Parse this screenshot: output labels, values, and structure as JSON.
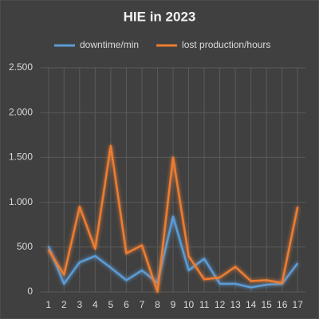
{
  "chart_data": {
    "type": "line",
    "title": "HIE in 2023",
    "categories": [
      "1",
      "2",
      "3",
      "4",
      "5",
      "6",
      "7",
      "8",
      "9",
      "10",
      "11",
      "12",
      "13",
      "14",
      "15",
      "16",
      "17"
    ],
    "series": [
      {
        "name": "downtime/min",
        "color": "#5b9bd5",
        "values": [
          510,
          90,
          330,
          400,
          270,
          130,
          240,
          100,
          840,
          240,
          370,
          90,
          90,
          50,
          80,
          90,
          320
        ]
      },
      {
        "name": "lost production/hours",
        "color": "#ed7d31",
        "values": [
          470,
          190,
          950,
          480,
          1630,
          430,
          520,
          0,
          1500,
          400,
          140,
          160,
          280,
          120,
          130,
          100,
          950
        ]
      }
    ],
    "ylim": [
      0,
      2500
    ],
    "yticks": [
      0,
      500,
      {
        "value": 1000,
        "label": "1.000"
      },
      {
        "value": 1500,
        "label": "1.500"
      },
      {
        "value": 2000,
        "label": "2.000"
      },
      {
        "value": 2500,
        "label": "2.500"
      }
    ],
    "grid": true
  }
}
